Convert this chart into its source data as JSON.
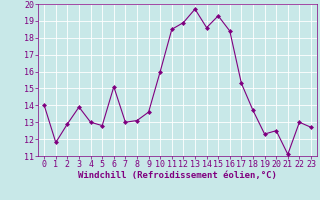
{
  "x": [
    0,
    1,
    2,
    3,
    4,
    5,
    6,
    7,
    8,
    9,
    10,
    11,
    12,
    13,
    14,
    15,
    16,
    17,
    18,
    19,
    20,
    21,
    22,
    23
  ],
  "y": [
    14,
    11.8,
    12.9,
    13.9,
    13.0,
    12.8,
    15.1,
    13.0,
    13.1,
    13.6,
    16.0,
    18.5,
    18.9,
    19.7,
    18.6,
    19.3,
    18.4,
    15.3,
    13.7,
    12.3,
    12.5,
    11.1,
    13.0,
    12.7
  ],
  "line_color": "#800080",
  "marker": "D",
  "marker_size": 2.0,
  "bg_color": "#c8e8e8",
  "grid_color": "#ffffff",
  "xlabel": "Windchill (Refroidissement éolien,°C)",
  "ylim": [
    11,
    20
  ],
  "xlim": [
    -0.5,
    23.5
  ],
  "yticks": [
    11,
    12,
    13,
    14,
    15,
    16,
    17,
    18,
    19,
    20
  ],
  "xticks": [
    0,
    1,
    2,
    3,
    4,
    5,
    6,
    7,
    8,
    9,
    10,
    11,
    12,
    13,
    14,
    15,
    16,
    17,
    18,
    19,
    20,
    21,
    22,
    23
  ],
  "tick_color": "#800080",
  "font_size": 6.0,
  "xlabel_fontsize": 6.5,
  "line_width": 0.8
}
